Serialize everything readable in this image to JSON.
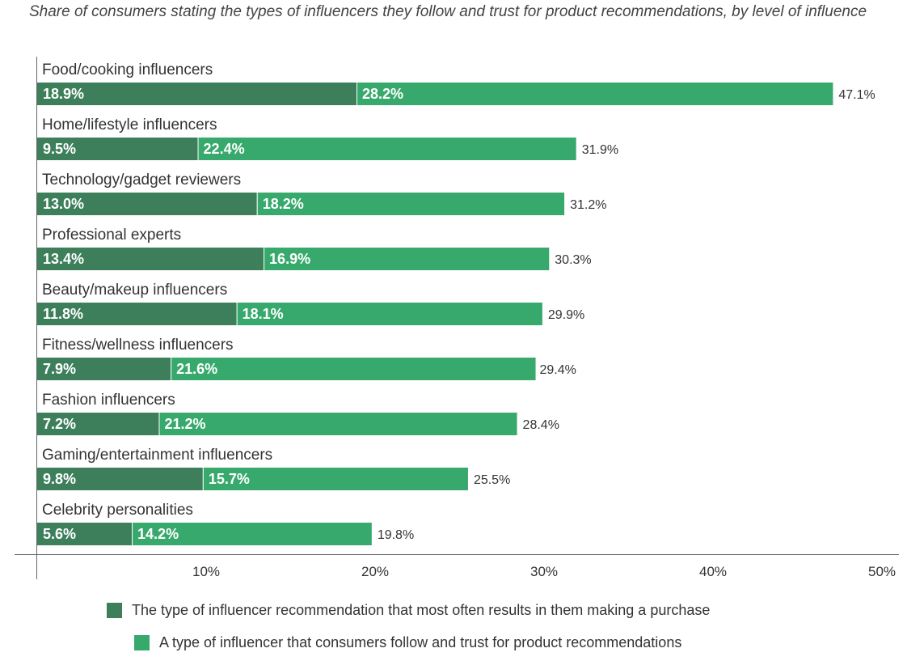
{
  "chart_data": {
    "type": "bar",
    "orientation": "horizontal",
    "stacked": true,
    "subtitle": "Share of consumers stating the types of influencers they follow and trust for product recommendations, by level of influence",
    "categories": [
      "Food/cooking influencers",
      "Home/lifestyle influencers",
      "Technology/gadget reviewers",
      "Professional experts",
      "Beauty/makeup influencers",
      "Fitness/wellness influencers",
      "Fashion influencers",
      "Gaming/entertainment influencers",
      "Celebrity personalities"
    ],
    "series": [
      {
        "name": "The type of influencer recommendation that most often results in them making a purchase",
        "color": "#3d7f5b",
        "values": [
          18.9,
          9.5,
          13.0,
          13.4,
          11.8,
          7.9,
          7.2,
          9.8,
          5.6
        ],
        "labels": [
          "18.9%",
          "9.5%",
          "13.0%",
          "13.4%",
          "11.8%",
          "7.9%",
          "7.2%",
          "9.8%",
          "5.6%"
        ]
      },
      {
        "name": "A type of influencer that consumers follow and trust for product recommendations",
        "color": "#38a96c",
        "values": [
          28.2,
          22.4,
          18.2,
          16.9,
          18.1,
          21.6,
          21.2,
          15.7,
          14.2
        ],
        "labels": [
          "28.2%",
          "22.4%",
          "18.2%",
          "16.9%",
          "18.1%",
          "21.6%",
          "21.2%",
          "15.7%",
          "14.2%"
        ]
      }
    ],
    "totals": [
      47.1,
      31.9,
      31.2,
      30.3,
      29.9,
      29.4,
      28.4,
      25.5,
      19.8
    ],
    "total_labels": [
      "47.1%",
      "31.9%",
      "31.2%",
      "30.3%",
      "29.9%",
      "29.4%",
      "28.4%",
      "25.5%",
      "19.8%"
    ],
    "xlim": [
      0,
      50
    ],
    "x_ticks": [
      10,
      20,
      30,
      40,
      50
    ],
    "x_tick_labels": [
      "10%",
      "20%",
      "30%",
      "40%",
      "50%"
    ],
    "grid": false,
    "legend_position": "bottom"
  }
}
